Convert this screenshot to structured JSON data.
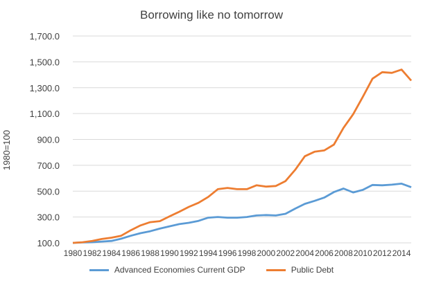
{
  "chart_data": {
    "type": "line",
    "title": "Borrowing like no tomorrow",
    "ylabel": "1980=100",
    "xlabel": "",
    "ylim": [
      100,
      1700
    ],
    "yticks": [
      "100.0",
      "300.0",
      "500.0",
      "700.0",
      "900.0",
      "1,100.0",
      "1,300.0",
      "1,500.0",
      "1,700.0"
    ],
    "ytick_values": [
      100,
      300,
      500,
      700,
      900,
      1100,
      1300,
      1500,
      1700
    ],
    "xticks": [
      "1980",
      "1982",
      "1984",
      "1986",
      "1988",
      "1990",
      "1992",
      "1994",
      "1996",
      "1998",
      "2000",
      "2002",
      "2004",
      "2006",
      "2008",
      "2010",
      "2012",
      "2014"
    ],
    "x": [
      1980,
      1981,
      1982,
      1983,
      1984,
      1985,
      1986,
      1987,
      1988,
      1989,
      1990,
      1991,
      1992,
      1993,
      1994,
      1995,
      1996,
      1997,
      1998,
      1999,
      2000,
      2001,
      2002,
      2003,
      2004,
      2005,
      2006,
      2007,
      2008,
      2009,
      2010,
      2011,
      2012,
      2013,
      2014,
      2015
    ],
    "grid": true,
    "legend_position": "bottom",
    "series": [
      {
        "name": "Advanced Economies Current GDP",
        "color": "#5b9bd5",
        "values": [
          100,
          103,
          105,
          110,
          115,
          132,
          155,
          175,
          190,
          210,
          228,
          245,
          255,
          270,
          295,
          300,
          295,
          295,
          300,
          312,
          315,
          312,
          325,
          365,
          402,
          425,
          450,
          493,
          520,
          490,
          510,
          548,
          545,
          550,
          558,
          530
        ]
      },
      {
        "name": "Public Debt",
        "color": "#ed7d31",
        "values": [
          100,
          105,
          115,
          130,
          140,
          155,
          198,
          235,
          260,
          268,
          305,
          340,
          378,
          410,
          455,
          515,
          525,
          515,
          515,
          545,
          535,
          540,
          578,
          665,
          770,
          805,
          815,
          860,
          990,
          1095,
          1230,
          1370,
          1420,
          1415,
          1440,
          1355
        ]
      }
    ]
  }
}
